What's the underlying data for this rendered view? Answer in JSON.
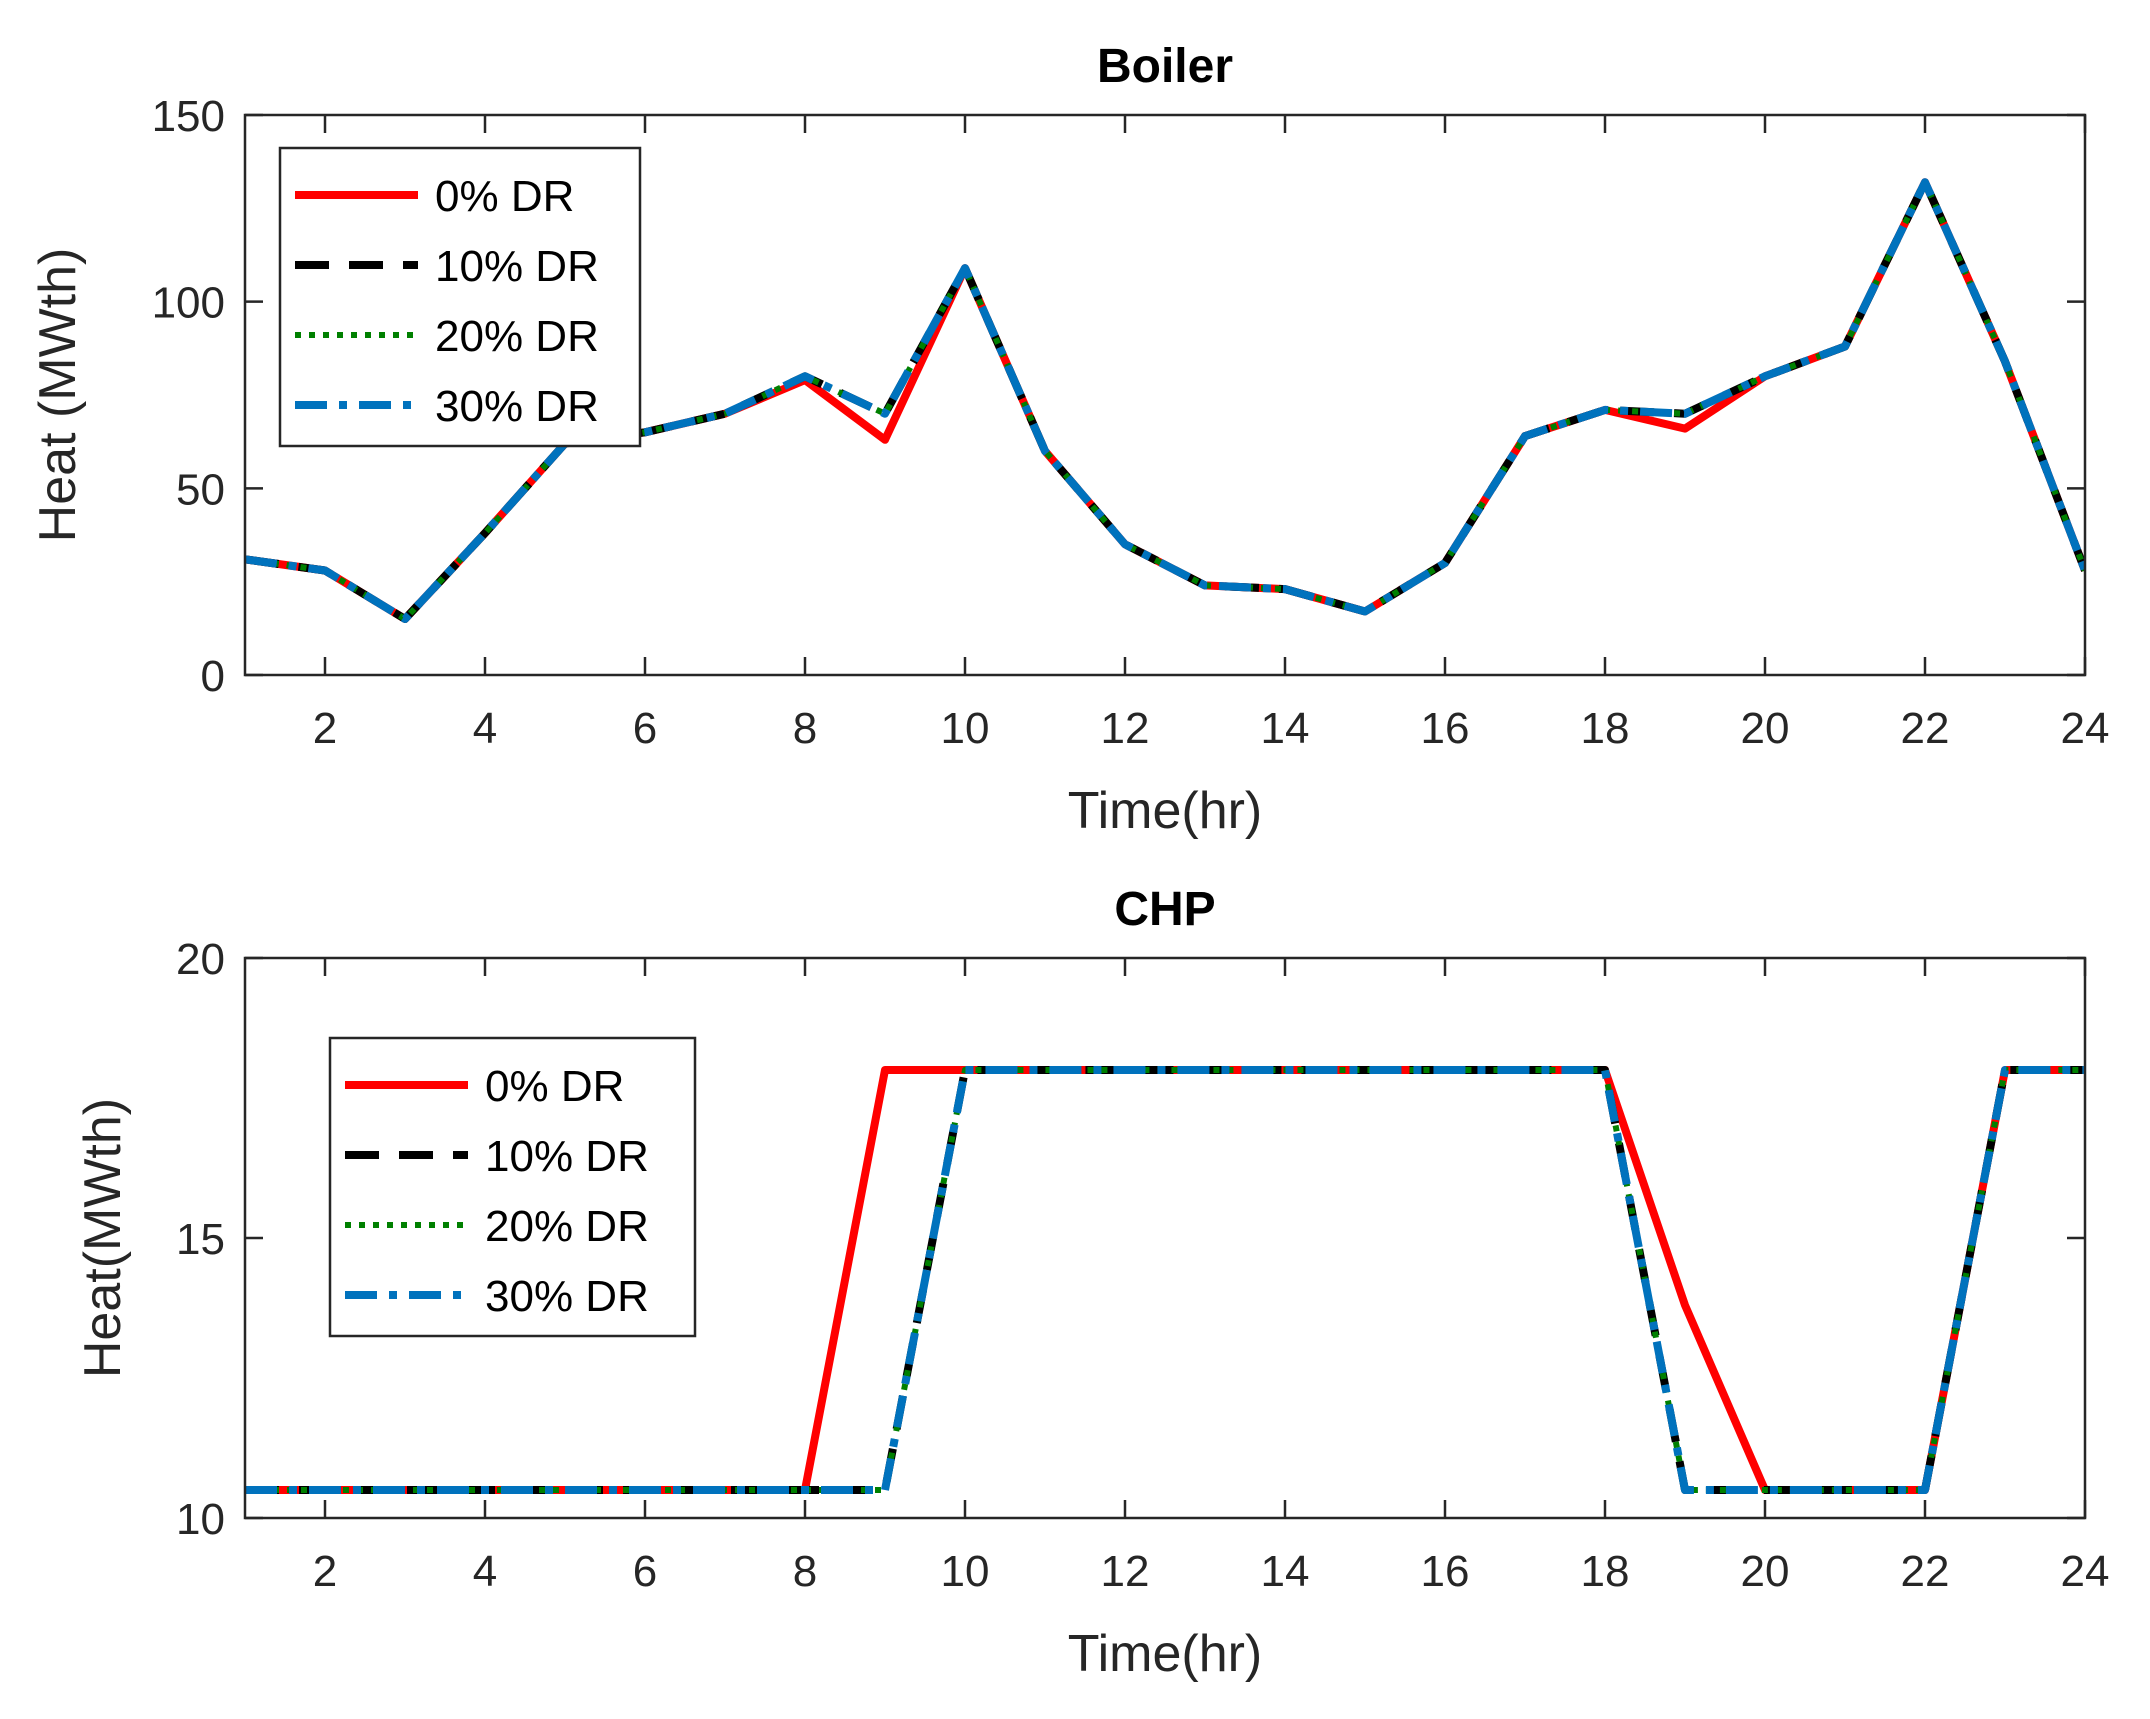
{
  "chart_data": [
    {
      "type": "line",
      "title": "Boiler",
      "xlabel": "Time(hr)",
      "ylabel": "Heat (MWth)",
      "xlim": [
        1,
        24
      ],
      "ylim": [
        0,
        150
      ],
      "xticks": [
        2,
        4,
        6,
        8,
        10,
        12,
        14,
        16,
        18,
        20,
        22,
        24
      ],
      "yticks": [
        0,
        50,
        100,
        150
      ],
      "legend_position": "top-left",
      "x": [
        1,
        2,
        3,
        4,
        5,
        6,
        7,
        8,
        9,
        10,
        11,
        12,
        13,
        14,
        15,
        16,
        17,
        18,
        19,
        20,
        21,
        22,
        23,
        24
      ],
      "series": [
        {
          "name": "0% DR",
          "color": "#ff0000",
          "style": "solid",
          "values": [
            31,
            28,
            15,
            38,
            62,
            65,
            70,
            79,
            63,
            109,
            60,
            35,
            24,
            23,
            17,
            30,
            64,
            71,
            66,
            80,
            88,
            132,
            84,
            28
          ]
        },
        {
          "name": "10% DR",
          "color": "#000000",
          "style": "dashed",
          "values": [
            31,
            28,
            15,
            38,
            62,
            65,
            70,
            80,
            70,
            109,
            60,
            35,
            24,
            23,
            17,
            30,
            64,
            71,
            70,
            80,
            88,
            132,
            84,
            28
          ]
        },
        {
          "name": "20% DR",
          "color": "#008000",
          "style": "dotted",
          "values": [
            31,
            28,
            15,
            38,
            62,
            65,
            70,
            80,
            70,
            109,
            60,
            35,
            24,
            23,
            17,
            30,
            64,
            71,
            70,
            80,
            88,
            132,
            84,
            28
          ]
        },
        {
          "name": "30% DR",
          "color": "#0072bd",
          "style": "dashdot",
          "values": [
            31,
            28,
            15,
            38,
            62,
            65,
            70,
            80,
            70,
            109,
            60,
            35,
            24,
            23,
            17,
            30,
            64,
            71,
            70,
            80,
            88,
            132,
            84,
            28
          ]
        }
      ]
    },
    {
      "type": "line",
      "title": "CHP",
      "xlabel": "Time(hr)",
      "ylabel": "Heat(MWth)",
      "xlim": [
        1,
        24
      ],
      "ylim": [
        10,
        20
      ],
      "xticks": [
        2,
        4,
        6,
        8,
        10,
        12,
        14,
        16,
        18,
        20,
        22,
        24
      ],
      "yticks": [
        10,
        15,
        20
      ],
      "legend_position": "upper-left",
      "x": [
        1,
        2,
        3,
        4,
        5,
        6,
        7,
        8,
        9,
        10,
        11,
        12,
        13,
        14,
        15,
        16,
        17,
        18,
        19,
        20,
        21,
        22,
        23,
        24
      ],
      "series": [
        {
          "name": "0% DR",
          "color": "#ff0000",
          "style": "solid",
          "values": [
            10.5,
            10.5,
            10.5,
            10.5,
            10.5,
            10.5,
            10.5,
            10.5,
            18,
            18,
            18,
            18,
            18,
            18,
            18,
            18,
            18,
            18,
            13.8,
            10.5,
            10.5,
            10.5,
            18,
            18
          ]
        },
        {
          "name": "10% DR",
          "color": "#000000",
          "style": "dashed",
          "values": [
            10.5,
            10.5,
            10.5,
            10.5,
            10.5,
            10.5,
            10.5,
            10.5,
            10.5,
            18,
            18,
            18,
            18,
            18,
            18,
            18,
            18,
            18,
            10.5,
            10.5,
            10.5,
            10.5,
            18,
            18
          ]
        },
        {
          "name": "20% DR",
          "color": "#008000",
          "style": "dotted",
          "values": [
            10.5,
            10.5,
            10.5,
            10.5,
            10.5,
            10.5,
            10.5,
            10.5,
            10.5,
            18,
            18,
            18,
            18,
            18,
            18,
            18,
            18,
            18,
            10.5,
            10.5,
            10.5,
            10.5,
            18,
            18
          ]
        },
        {
          "name": "30% DR",
          "color": "#0072bd",
          "style": "dashdot",
          "values": [
            10.5,
            10.5,
            10.5,
            10.5,
            10.5,
            10.5,
            10.5,
            10.5,
            10.5,
            18,
            18,
            18,
            18,
            18,
            18,
            18,
            18,
            18,
            10.5,
            10.5,
            10.5,
            10.5,
            18,
            18
          ]
        }
      ]
    }
  ]
}
